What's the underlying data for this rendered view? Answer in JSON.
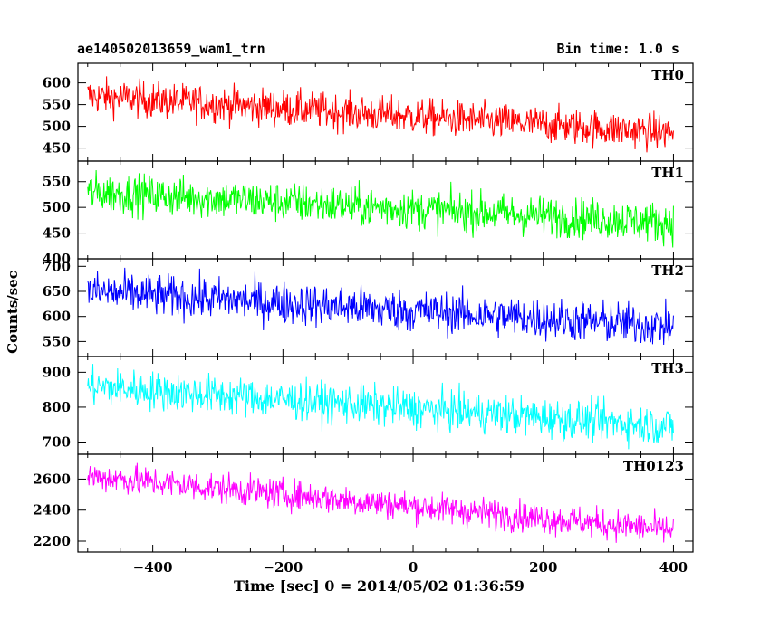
{
  "header": {
    "title": "ae140502013659_wam1_trn",
    "bin_time": "Bin time: 1.0 s"
  },
  "chart_data": {
    "type": "line",
    "xlabel": "Time [sec] 0 = 2014/05/02 01:36:59",
    "ylabel": "Counts/sec",
    "xlim": [
      -515,
      430
    ],
    "x_ticks": [
      -400,
      -200,
      0,
      200,
      400
    ],
    "x_tick_labels": [
      "−400",
      "−200",
      "0",
      "200",
      "400"
    ],
    "x_range_data": [
      -500,
      400
    ],
    "series": [
      {
        "name": "TH0",
        "color": "#ff0000",
        "ylim": [
          420,
          645
        ],
        "yticks": [
          450,
          500,
          550,
          600
        ],
        "start_mean": 570,
        "end_mean": 485,
        "noise": 30
      },
      {
        "name": "TH1",
        "color": "#00ff00",
        "ylim": [
          400,
          590
        ],
        "yticks": [
          400,
          450,
          500,
          550
        ],
        "start_mean": 530,
        "end_mean": 470,
        "noise": 28
      },
      {
        "name": "TH2",
        "color": "#0000ff",
        "ylim": [
          520,
          715
        ],
        "yticks": [
          550,
          600,
          650,
          700
        ],
        "start_mean": 650,
        "end_mean": 580,
        "noise": 30
      },
      {
        "name": "TH3",
        "color": "#00ffff",
        "ylim": [
          665,
          945
        ],
        "yticks": [
          700,
          800,
          900
        ],
        "start_mean": 860,
        "end_mean": 745,
        "noise": 40
      },
      {
        "name": "TH0123",
        "color": "#ff00ff",
        "ylim": [
          2130,
          2760
        ],
        "yticks": [
          2200,
          2400,
          2600
        ],
        "start_mean": 2620,
        "end_mean": 2270,
        "noise": 70
      }
    ]
  }
}
